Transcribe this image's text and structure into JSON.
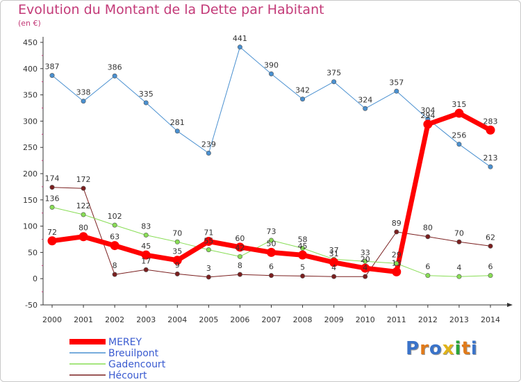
{
  "title": "Evolution du Montant de la Dette par Habitant",
  "subtitle": "(en €)",
  "logo": "Proxiti",
  "colors": {
    "title": "#c33a78",
    "legend_text": "#3a5bd0",
    "logo_letters": [
      "#3a73c9",
      "#e07a1a",
      "#3a73c9",
      "#e0b31a",
      "#2aa53a",
      "#e07a1a",
      "#3a73c9"
    ]
  },
  "chart_data": {
    "type": "line",
    "x": [
      2000,
      2001,
      2002,
      2003,
      2004,
      2005,
      2006,
      2007,
      2008,
      2009,
      2010,
      2011,
      2012,
      2013,
      2014
    ],
    "ylim": [
      -50,
      450
    ],
    "yticks": [
      -50,
      0,
      50,
      100,
      150,
      200,
      250,
      300,
      350,
      400,
      450
    ],
    "grid": false,
    "legend_position": "bottom-left",
    "series": [
      {
        "name": "MEREY",
        "color": "#ff0000",
        "values": [
          72,
          80,
          63,
          45,
          35,
          71,
          60,
          50,
          45,
          31,
          20,
          13,
          294,
          315,
          283
        ],
        "labels": [
          "72",
          "80",
          "63",
          "45",
          "35",
          "71",
          "60",
          "50",
          "45",
          "31",
          "20",
          "13",
          "294",
          "315",
          "283"
        ]
      },
      {
        "name": "Breuilpont",
        "color": "#4a90d0",
        "values": [
          387,
          338,
          386,
          335,
          281,
          239,
          441,
          390,
          342,
          375,
          324,
          357,
          304,
          256,
          213
        ],
        "labels": [
          "387",
          "338",
          "386",
          "335",
          "281",
          "239",
          "441",
          "390",
          "342",
          "375",
          "324",
          "357",
          "304",
          "256",
          "213"
        ]
      },
      {
        "name": "Gadencourt",
        "color": "#88dd55",
        "values": [
          136,
          122,
          102,
          83,
          70,
          55,
          42,
          73,
          58,
          37,
          33,
          29,
          6,
          4,
          6
        ],
        "labels": [
          "136",
          "122",
          "102",
          "83",
          "70",
          "55",
          "42",
          "73",
          "58",
          "37",
          "33",
          "29",
          "6",
          "4",
          "6"
        ]
      },
      {
        "name": "Hécourt",
        "color": "#7a1f1f",
        "values": [
          174,
          172,
          8,
          17,
          9,
          3,
          8,
          6,
          5,
          4,
          4,
          89,
          80,
          70,
          62
        ],
        "labels": [
          "174",
          "172",
          "8",
          "17",
          "9",
          "3",
          "8",
          "6",
          "5",
          "4",
          "4",
          "89",
          "80",
          "70",
          "62"
        ]
      }
    ]
  }
}
